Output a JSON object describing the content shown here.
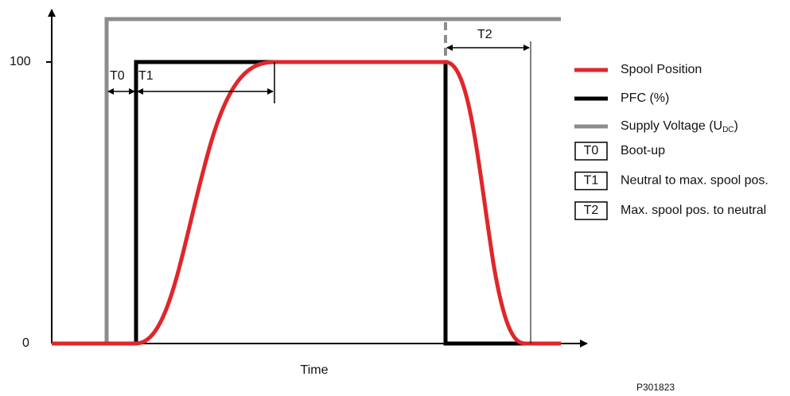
{
  "axis": {
    "y_top": "100",
    "y_bottom": "0",
    "x_label": "Time"
  },
  "annotations": {
    "t0": "T0",
    "t1": "T1",
    "t2": "T2"
  },
  "legend": {
    "spool": "Spool Position",
    "pfc": "PFC (%)",
    "supply": {
      "text": "Supply Voltage (U",
      "sub": "DC",
      "end": ")"
    },
    "intervals": [
      {
        "key": "T0",
        "label": "Boot-up"
      },
      {
        "key": "T1",
        "label": "Neutral to max. spool pos."
      },
      {
        "key": "T2",
        "label": "Max. spool pos. to neutral"
      }
    ]
  },
  "figure_id": "P301823"
}
